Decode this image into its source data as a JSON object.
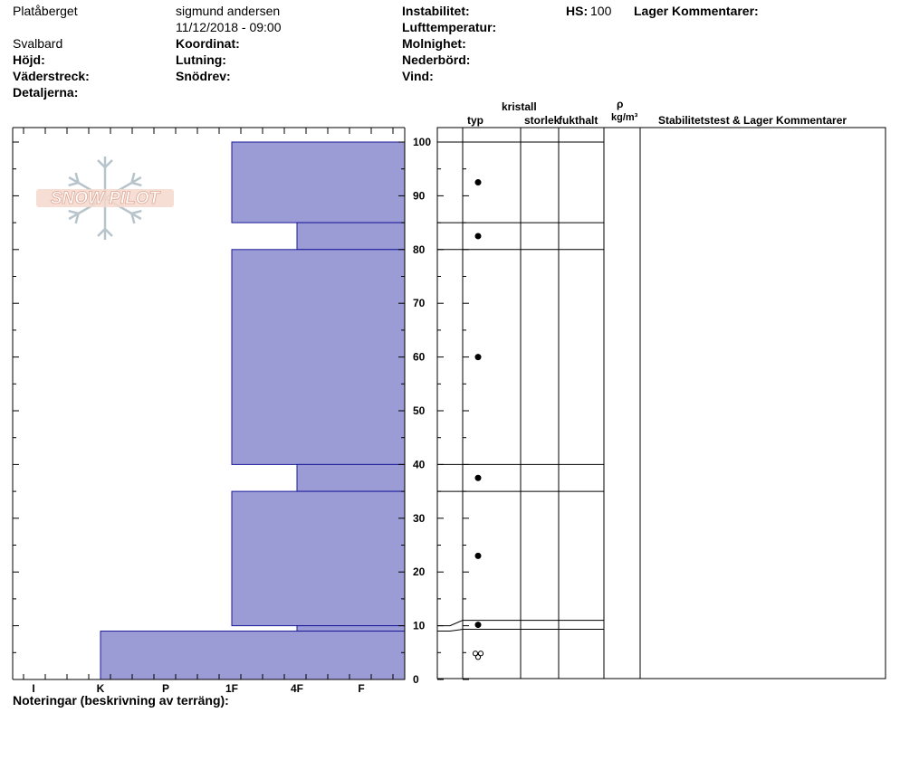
{
  "header": {
    "location": "Platåberget",
    "observer": "sigmund andersen",
    "datetime": "11/12/2018 - 09:00",
    "region": "Svalbard",
    "elevation_label": "Höjd:",
    "aspect_label": "Väderstreck:",
    "details_label": "Detaljerna:",
    "coordinate_label": "Koordinat:",
    "slope_label": "Lutning:",
    "wind_loading_label": "Snödrev:",
    "instability_label": "Instabilitet:",
    "air_temp_label": "Lufttemperatur:",
    "cloud_label": "Molnighet:",
    "precip_label": "Nederbörd:",
    "wind_label": "Vind:",
    "hs_label": "HS:",
    "hs_value": "100",
    "layer_comments_label": "Lager Kommentarer:"
  },
  "columns": {
    "crystal": "kristall",
    "type": "typ",
    "size": "storlek",
    "moisture": "fukthalt",
    "rho": "ρ",
    "density_unit": "kg/m³",
    "stability_comments": "Stabilitetstest & Lager Kommentarer"
  },
  "logo_text": "SNOW PILOT",
  "footer": {
    "notes_label": "Noteringar (beskrivning av terräng):"
  },
  "colors": {
    "hardness_fill": "#9b9bd6",
    "hardness_stroke": "#1a1a99"
  },
  "chart_data": {
    "type": "bar",
    "title": "",
    "hardness_scale": [
      "I",
      "K",
      "P",
      "1F",
      "4F",
      "F"
    ],
    "ylim": [
      0,
      100
    ],
    "y_ticks": [
      0,
      10,
      20,
      30,
      40,
      50,
      60,
      70,
      80,
      90,
      100
    ],
    "layers": [
      {
        "bottom": 85,
        "top": 100,
        "hardness": "1F",
        "grain": "rounded"
      },
      {
        "bottom": 80,
        "top": 85,
        "hardness": "4F",
        "grain": "rounded"
      },
      {
        "bottom": 40,
        "top": 80,
        "hardness": "1F",
        "grain": "rounded"
      },
      {
        "bottom": 35,
        "top": 40,
        "hardness": "4F",
        "grain": "rounded"
      },
      {
        "bottom": 10,
        "top": 35,
        "hardness": "1F",
        "grain": "rounded"
      },
      {
        "bottom": 9,
        "top": 10,
        "hardness": "4F",
        "grain": "rounded"
      },
      {
        "bottom": 0,
        "top": 9,
        "hardness": "K",
        "grain": "melt-freeze"
      }
    ]
  }
}
